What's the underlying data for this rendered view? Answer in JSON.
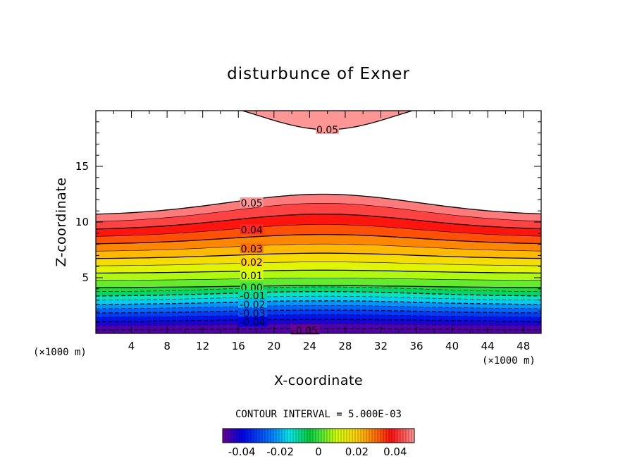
{
  "chart_data": {
    "type": "contour",
    "title": "disturbunce of Exner",
    "xlabel": "X-coordinate",
    "ylabel": "Z-coordinate",
    "x_unit_left": "(×1000 m)",
    "x_unit_right": "(×1000 m)",
    "xlim": [
      0,
      50
    ],
    "ylim": [
      0,
      20
    ],
    "x_ticks": [
      4,
      8,
      12,
      16,
      20,
      24,
      28,
      32,
      36,
      40,
      44,
      48
    ],
    "y_ticks": [
      5,
      10,
      15
    ],
    "contour_interval_text": "CONTOUR INTERVAL = 5.000E-03",
    "contour_interval": 0.005,
    "shaded_top_z": [
      10.6,
      12.5,
      10.6
    ],
    "upper_band_min_z": 18.3,
    "contour_labels": [
      {
        "text": "0.05",
        "x": 26,
        "z": 18.3
      },
      {
        "text": "0.05",
        "x": 17.5,
        "z": 11.7
      },
      {
        "text": "0.04",
        "x": 17.5,
        "z": 9.3
      },
      {
        "text": "0.03",
        "x": 17.5,
        "z": 7.6
      },
      {
        "text": "0.02",
        "x": 17.5,
        "z": 6.4
      },
      {
        "text": "0.01",
        "x": 17.5,
        "z": 5.2
      },
      {
        "text": "0.00",
        "x": 17.5,
        "z": 4.1
      },
      {
        "text": "-0.01",
        "x": 17.6,
        "z": 3.4
      },
      {
        "text": "-0.02",
        "x": 17.6,
        "z": 2.6
      },
      {
        "text": "-0.03",
        "x": 17.6,
        "z": 1.8
      },
      {
        "text": "-0.04",
        "x": 17.6,
        "z": 1.0
      },
      {
        "text": "-0.05",
        "x": 23.5,
        "z": 0.3
      }
    ],
    "colorbar": {
      "range": [
        -0.05,
        0.05
      ],
      "tick_labels": [
        "-0.04",
        "-0.02",
        "0",
        "0.02",
        "0.04"
      ],
      "tick_values": [
        -0.04,
        -0.02,
        0,
        0.02,
        0.04
      ]
    }
  }
}
